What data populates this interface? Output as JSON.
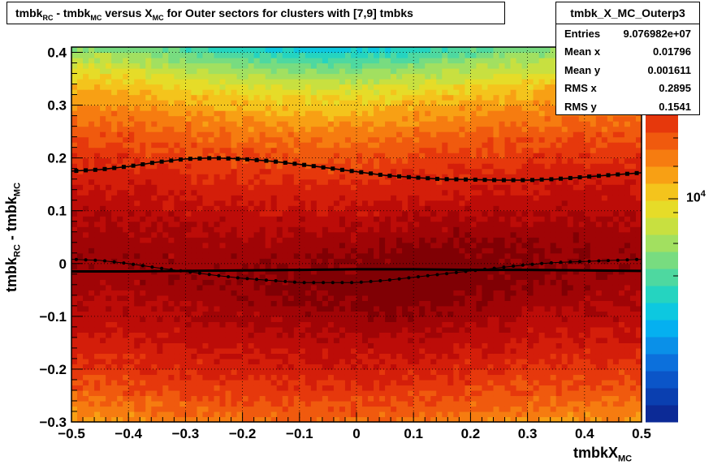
{
  "title": {
    "parts": [
      "tmbk",
      "RC",
      " - tmbk",
      "MC",
      " versus X",
      "MC",
      " for Outer sectors for clusters with [7,9] tmbks"
    ]
  },
  "stats": {
    "name": "tmbk_X_MC_Outerp3",
    "rows": [
      {
        "label": "Entries",
        "value": "9.076982e+07"
      },
      {
        "label": "Mean x",
        "value": "0.01796"
      },
      {
        "label": "Mean y",
        "value": "0.001611"
      },
      {
        "label": "RMS x",
        "value": "0.2895"
      },
      {
        "label": "RMS y",
        "value": "0.1541"
      }
    ]
  },
  "axis_titles": {
    "y_main": "tmbk",
    "y_sub1": "RC",
    "y_mid": " - tmbk",
    "y_sub2": "MC",
    "x_main": "tmbkX",
    "x_sub": "MC"
  },
  "z_axis": {
    "label_base": "10",
    "label_exp": "4"
  },
  "colors": {
    "frame": "#000000",
    "grid": "#000000",
    "markers": "#000000"
  },
  "chart_data": {
    "type": "heatmap",
    "title": "tmbk_RC - tmbk_MC versus X_MC for Outer sectors for clusters with [7,9] tmbks",
    "xlabel": "tmbkX_MC",
    "ylabel": "tmbk_RC - tmbk_MC",
    "xlim": [
      -0.5,
      0.5
    ],
    "ylim": [
      -0.3,
      0.41
    ],
    "x_ticks": [
      "−0.5",
      "−0.4",
      "−0.3",
      "−0.2",
      "−0.1",
      "0",
      "0.1",
      "0.2",
      "0.3",
      "0.4",
      "0.5"
    ],
    "x_tick_values": [
      -0.5,
      -0.4,
      -0.3,
      -0.2,
      -0.1,
      0,
      0.1,
      0.2,
      0.3,
      0.4,
      0.5
    ],
    "y_ticks": [
      "−0.3",
      "−0.2",
      "−0.1",
      "0",
      "0.1",
      "0.2",
      "0.3",
      "0.4"
    ],
    "y_tick_values": [
      -0.3,
      -0.2,
      -0.1,
      0,
      0.1,
      0.2,
      0.3,
      0.4
    ],
    "grid": true,
    "z_scale": "log",
    "z_tick_label": "10^4",
    "palette": [
      "#0c2a96",
      "#0a3fb0",
      "#0b55c8",
      "#0c70dc",
      "#0a90e8",
      "#05b0f0",
      "#0dc8e0",
      "#25d4c0",
      "#4ed8a0",
      "#78dc80",
      "#a2e060",
      "#c8e040",
      "#e6dc28",
      "#f4c41c",
      "#f8a014",
      "#f67c10",
      "#f05a0e",
      "#e6380c",
      "#d41e0a",
      "#bc0c08",
      "#a00406",
      "#800004"
    ],
    "series": [
      {
        "name": "mean",
        "marker": "small",
        "x": [
          -0.5,
          -0.45,
          -0.4,
          -0.35,
          -0.3,
          -0.25,
          -0.2,
          -0.15,
          -0.1,
          -0.05,
          0,
          0.05,
          0.1,
          0.15,
          0.2,
          0.25,
          0.3,
          0.35,
          0.4,
          0.45,
          0.5
        ],
        "y": [
          0.008,
          0.006,
          0.0,
          -0.008,
          -0.015,
          -0.022,
          -0.028,
          -0.032,
          -0.036,
          -0.036,
          -0.036,
          -0.032,
          -0.026,
          -0.02,
          -0.014,
          -0.008,
          -0.002,
          0.002,
          0.004,
          0.006,
          0.008
        ]
      },
      {
        "name": "rms",
        "marker": "square",
        "x": [
          -0.5,
          -0.45,
          -0.4,
          -0.35,
          -0.3,
          -0.25,
          -0.2,
          -0.15,
          -0.1,
          -0.05,
          0,
          0.05,
          0.1,
          0.15,
          0.2,
          0.25,
          0.3,
          0.35,
          0.4,
          0.45,
          0.5
        ],
        "y": [
          0.175,
          0.178,
          0.184,
          0.192,
          0.198,
          0.2,
          0.198,
          0.194,
          0.188,
          0.181,
          0.174,
          0.167,
          0.163,
          0.16,
          0.159,
          0.158,
          0.158,
          0.16,
          0.164,
          0.168,
          0.172
        ]
      },
      {
        "name": "fit",
        "marker": "line",
        "x": [
          -0.5,
          -0.4,
          -0.3,
          -0.2,
          -0.1,
          0,
          0.1,
          0.2,
          0.3,
          0.4,
          0.5
        ],
        "y": [
          -0.015,
          -0.015,
          -0.014,
          -0.013,
          -0.012,
          -0.011,
          -0.011,
          -0.012,
          -0.012,
          -0.013,
          -0.014
        ]
      }
    ]
  }
}
